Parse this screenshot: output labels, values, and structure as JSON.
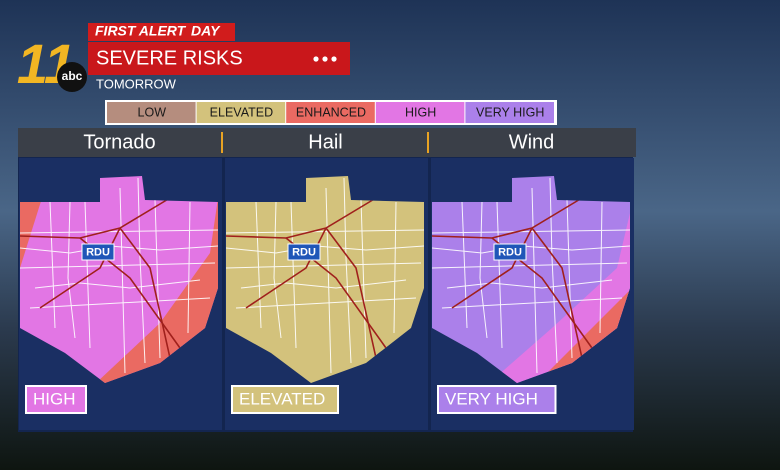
{
  "header": {
    "tag": "FIRST ALERT",
    "tag_day": "DAY",
    "title": "SEVERE RISKS",
    "subtitle": "TOMORROW",
    "logo_number": "11",
    "logo_network": "abc"
  },
  "legend": [
    {
      "label": "LOW",
      "color": "#b58d7e"
    },
    {
      "label": "ELEVATED",
      "color": "#d3c27c"
    },
    {
      "label": "ENHANCED",
      "color": "#ea6a62"
    },
    {
      "label": "HIGH",
      "color": "#e276e4"
    },
    {
      "label": "VERY HIGH",
      "color": "#ab80ea"
    }
  ],
  "panels": [
    {
      "title": "Tornado",
      "city": "RDU",
      "risk": "HIGH"
    },
    {
      "title": "Hail",
      "city": "RDU",
      "risk": "ELEVATED"
    },
    {
      "title": "Wind",
      "city": "RDU",
      "risk": "VERY HIGH"
    }
  ]
}
